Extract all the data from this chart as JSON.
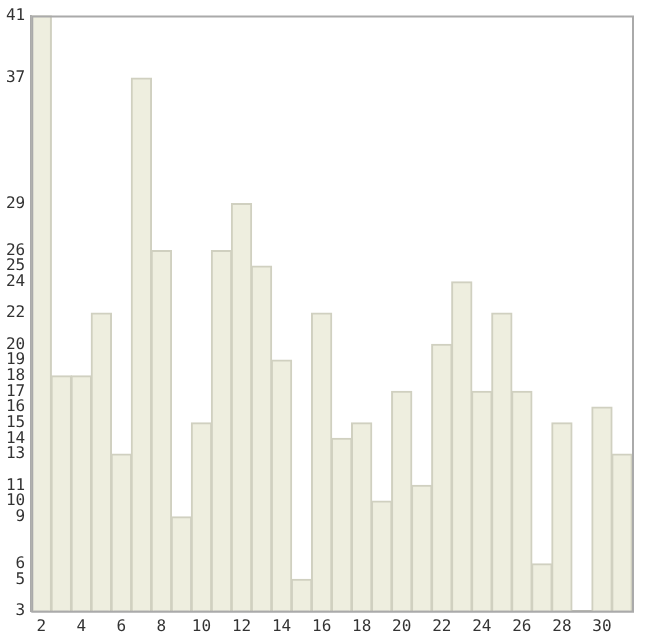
{
  "chart_data": {
    "type": "bar",
    "x": [
      2,
      3,
      4,
      5,
      6,
      7,
      8,
      9,
      10,
      11,
      12,
      13,
      14,
      15,
      16,
      17,
      18,
      19,
      20,
      21,
      22,
      23,
      24,
      25,
      26,
      27,
      28,
      29,
      30,
      31
    ],
    "values": [
      41,
      18,
      18,
      22,
      13,
      37,
      26,
      9,
      15,
      26,
      29,
      25,
      19,
      5,
      22,
      14,
      15,
      10,
      17,
      11,
      20,
      24,
      17,
      22,
      17,
      6,
      15,
      3,
      16,
      13
    ],
    "color": "#eeeedf",
    "xlim": [
      1.5,
      31.5
    ],
    "xticks": [
      2,
      4,
      6,
      8,
      10,
      12,
      14,
      16,
      18,
      20,
      22,
      24,
      26,
      28,
      30
    ],
    "ylim": [
      3,
      41
    ],
    "yticks": [
      3,
      5,
      6,
      9,
      10,
      11,
      13,
      14,
      15,
      16,
      17,
      18,
      19,
      20,
      22,
      24,
      25,
      26,
      29,
      37,
      41
    ],
    "grid": false,
    "legend": false
  }
}
